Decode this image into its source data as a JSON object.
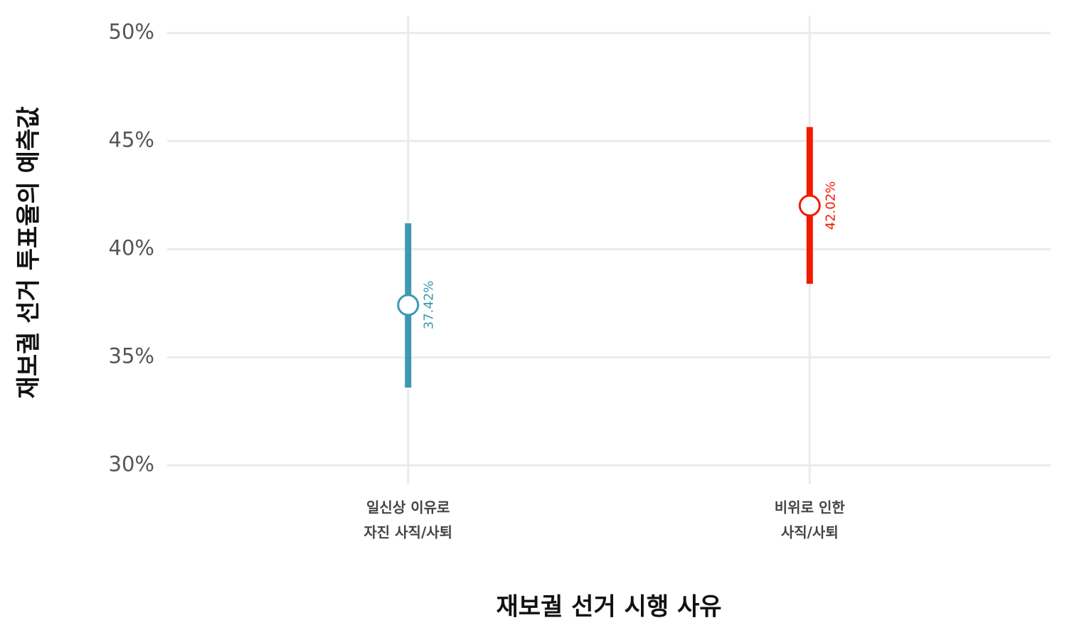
{
  "chart_data": {
    "type": "pointrange",
    "x_label": "재보궐 선거 시행 사유",
    "y_label": "재보궐 선거 투표율의 예측값",
    "categories": [
      [
        "일신상 이유로",
        "자진 사직/사퇴"
      ],
      [
        "비위로 인한",
        "사직/사퇴"
      ]
    ],
    "values": [
      37.42,
      42.02
    ],
    "value_labels": [
      "37.42%",
      "42.02%"
    ],
    "lower": [
      33.6,
      38.4
    ],
    "upper": [
      41.2,
      45.65
    ],
    "colors": [
      "#3b9ab2",
      "#f21a00"
    ],
    "ylim": [
      28.8,
      51
    ],
    "yticks": [
      {
        "value": 30,
        "label": "30%"
      },
      {
        "value": 35,
        "label": "35%"
      },
      {
        "value": 40,
        "label": "40%"
      },
      {
        "value": 45,
        "label": "45%"
      },
      {
        "value": 50,
        "label": "50%"
      }
    ],
    "grid": true
  }
}
